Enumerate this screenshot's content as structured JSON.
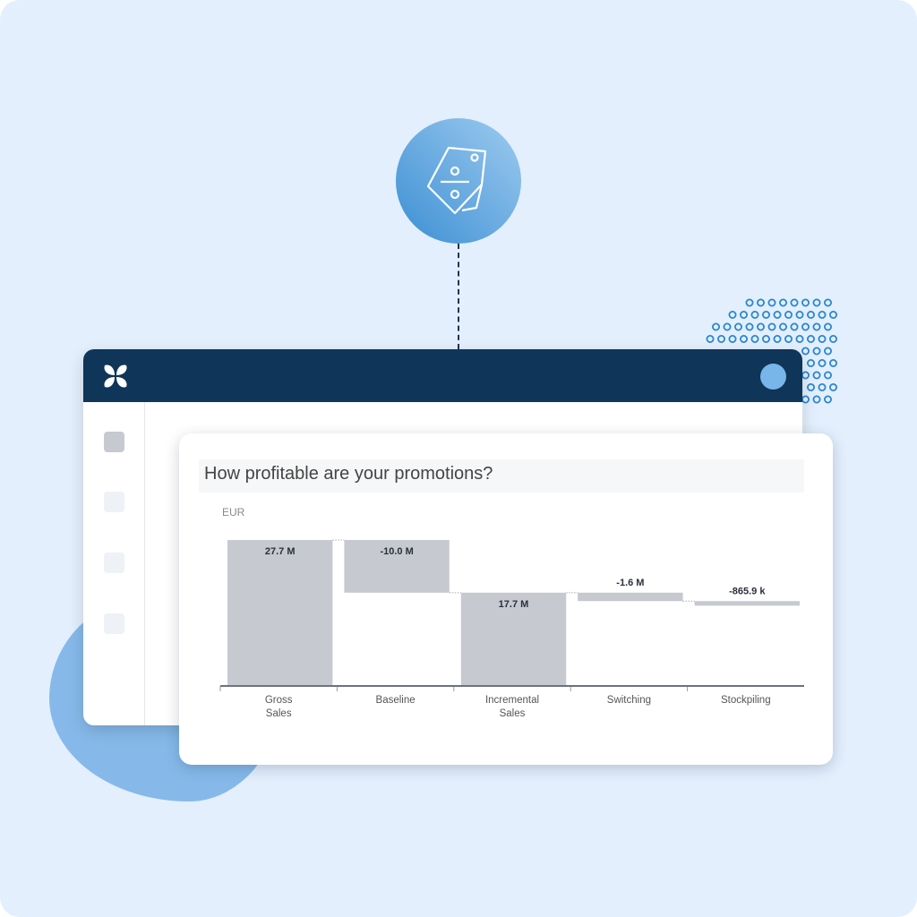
{
  "header": {
    "logo": "butterfly-logo"
  },
  "badge": {
    "icon": "price-tag-percent-icon"
  },
  "card": {
    "title": "How profitable are your promotions?"
  },
  "colors": {
    "bar": "#c6c9d0",
    "header": "#0f3558",
    "accent": "#78b5e8",
    "background": "#e3effd"
  },
  "chart_data": {
    "type": "waterfall",
    "title": "How profitable are your promotions?",
    "ylabel": "EUR",
    "categories": [
      "Gross\nSales",
      "Baseline",
      "Incremental\nSales",
      "Switching",
      "Stockpiling"
    ],
    "values": [
      27.7,
      -10.0,
      17.7,
      -1.6,
      -0.8659
    ],
    "kinds": [
      "total",
      "delta",
      "total",
      "delta",
      "delta"
    ],
    "labels": [
      "27.7 M",
      "-10.0 M",
      "17.7 M",
      "-1.6 M",
      "-865.9 k"
    ],
    "unit": "M EUR",
    "ylim": [
      0,
      27.7
    ],
    "grid": false
  }
}
